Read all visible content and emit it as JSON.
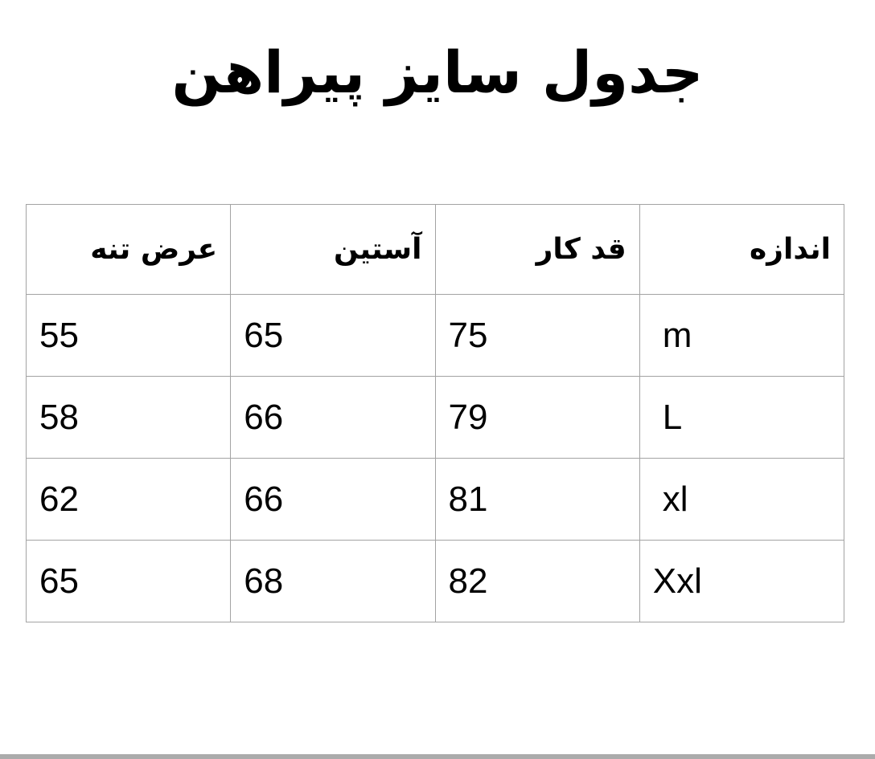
{
  "title": "جدول سایز پیراهن",
  "table": {
    "headers": [
      "عرض تنه",
      "آستین",
      "قد کار",
      "اندازه"
    ],
    "rows": [
      [
        "55",
        "65",
        "75",
        "m"
      ],
      [
        "58",
        "66",
        "79",
        "L"
      ],
      [
        "62",
        "66",
        "81",
        "xl"
      ],
      [
        "65",
        "68",
        "82",
        "Xxl"
      ]
    ]
  }
}
